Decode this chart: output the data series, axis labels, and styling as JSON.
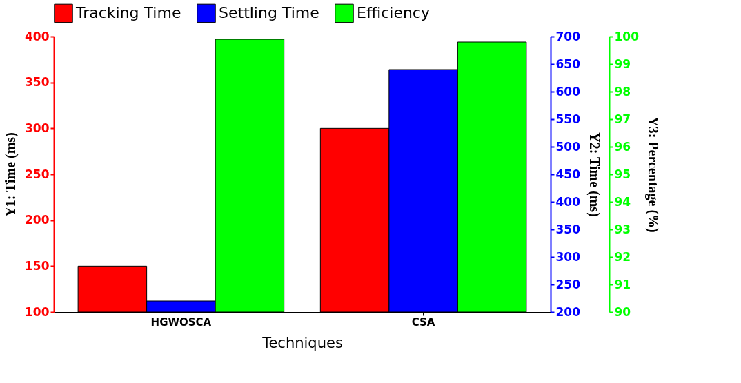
{
  "chart_data": {
    "type": "bar",
    "xlabel": "Techniques",
    "ylabel": "Y1: Time (ms)",
    "y2label": "Y2: Time (ms)",
    "y3label": "Y3: Percentage (%)",
    "categories": [
      "HGWOSCA",
      "CSA"
    ],
    "series": [
      {
        "name": "Tracking Time",
        "color": "#ff0000",
        "values": [
          150,
          300
        ]
      },
      {
        "name": "Settling Time",
        "color": "#0000ff",
        "values": [
          220,
          640
        ],
        "axis": "y2"
      },
      {
        "name": "Efficiency",
        "color": "#00ff00",
        "values": [
          99.9,
          99.8
        ],
        "axis": "y3"
      }
    ],
    "ylim": [
      100,
      400
    ],
    "yticks": [
      100,
      150,
      200,
      250,
      300,
      350,
      400
    ],
    "y2lim": [
      200,
      700
    ],
    "y2ticks": [
      200,
      250,
      300,
      350,
      400,
      450,
      500,
      550,
      600,
      650,
      700
    ],
    "y3lim": [
      90,
      100
    ],
    "y3ticks": [
      90,
      91,
      92,
      93,
      94,
      95,
      96,
      97,
      98,
      99,
      100
    ],
    "legend": "top",
    "grid": false
  }
}
